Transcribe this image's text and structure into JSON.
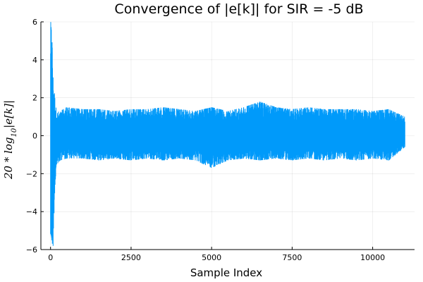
{
  "chart_data": {
    "type": "line",
    "title": "Convergence of |e[k]| for SIR = -5 dB",
    "xlabel": "Sample Index",
    "ylabel": "20 * log10|e[k]|",
    "xlim": [
      -300,
      11300
    ],
    "ylim": [
      -6,
      6
    ],
    "xticks": [
      0,
      2500,
      5000,
      7500,
      10000
    ],
    "xtick_labels": [
      "0",
      "2500",
      "5000",
      "7500",
      "10000"
    ],
    "yticks": [
      -6,
      -4,
      -2,
      0,
      2,
      4,
      6
    ],
    "ytick_labels": [
      "−6",
      "−4",
      "−2",
      "0",
      "2",
      "4",
      "6"
    ],
    "grid": true,
    "legend": "none",
    "color": "#009AFA",
    "series": [
      {
        "x_range": [
          0,
          11000
        ],
        "envelope_note_x": [
          0,
          40,
          80,
          120,
          160,
          200,
          300,
          500,
          1000,
          1500,
          2000,
          2500,
          3000,
          3500,
          4000,
          4500,
          5000,
          5500,
          6000,
          6500,
          7000,
          7500,
          8000,
          8500,
          9000,
          9500,
          10000,
          10500,
          11000
        ],
        "upper": [
          6,
          6,
          3.2,
          2.4,
          1.6,
          1.3,
          1.3,
          1.5,
          1.4,
          1.4,
          1.3,
          1.4,
          1.4,
          1.5,
          1.4,
          1.3,
          1.5,
          1.3,
          1.5,
          1.8,
          1.5,
          1.4,
          1.5,
          1.4,
          1.4,
          1.4,
          1.3,
          1.4,
          1.0
        ],
        "lower": [
          -6,
          -6,
          -6,
          -3.5,
          -2.4,
          -1.5,
          -1.3,
          -1.2,
          -1.2,
          -1.3,
          -1.2,
          -1.3,
          -1.2,
          -1.3,
          -1.2,
          -1.3,
          -1.7,
          -1.3,
          -1.2,
          -1.3,
          -1.2,
          -1.3,
          -1.2,
          -1.3,
          -1.2,
          -1.3,
          -1.2,
          -1.3,
          -0.6
        ]
      }
    ]
  }
}
